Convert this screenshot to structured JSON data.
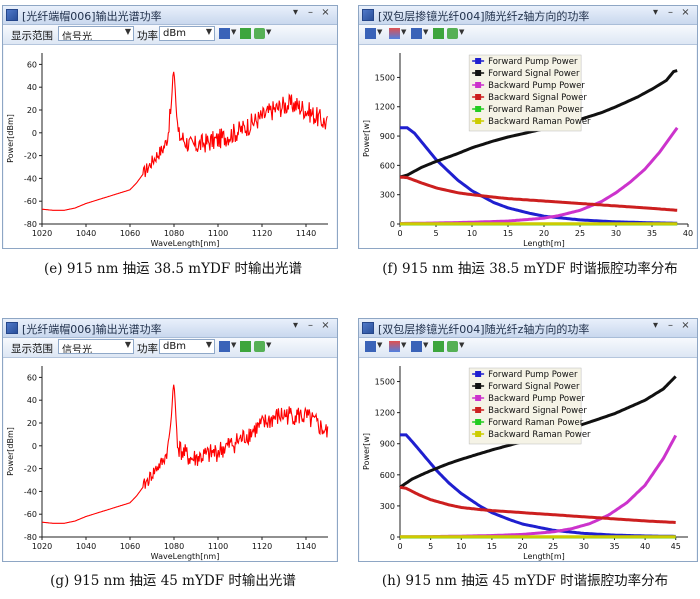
{
  "panels": {
    "e": {
      "title": "[光纤端帽006]输出光谱功率",
      "toolbar": {
        "range_label": "显示范围",
        "range_value": "信号光",
        "power_label": "功率",
        "power_value": "dBm"
      },
      "caption": "(e) 915 nm 抽运 38.5 mYDF 时输出光谱"
    },
    "f": {
      "title": "[双包层掺镱光纤004]随光纤z轴方向的功率",
      "caption": "(f) 915 nm 抽运 38.5 mYDF 时谐振腔功率分布"
    },
    "g": {
      "title": "[光纤端帽006]输出光谱功率",
      "toolbar": {
        "range_label": "显示范围",
        "range_value": "信号光",
        "power_label": "功率",
        "power_value": "dBm"
      },
      "caption": "(g) 915 nm 抽运 45 mYDF 时输出光谱"
    },
    "h": {
      "title": "[双包层掺镱光纤004]随光纤z轴方向的功率",
      "caption": "(h) 915 nm 抽运 45 mYDF 时谐振腔功率分布"
    }
  },
  "window_buttons": {
    "pin": "▾",
    "minimize": "–",
    "close": "×"
  },
  "chart_data": [
    {
      "id": "e",
      "type": "line",
      "xlabel": "WaveLength[nm]",
      "ylabel": "Power[dBm]",
      "xlim": [
        1020,
        1150
      ],
      "ylim": [
        -80,
        70
      ],
      "xticks": [
        1020,
        1040,
        1060,
        1080,
        1100,
        1120,
        1140
      ],
      "yticks": [
        -80,
        -60,
        -40,
        -20,
        0,
        20,
        40,
        60
      ],
      "series": [
        {
          "color": "#ff0000",
          "x": [
            1020,
            1025,
            1030,
            1035,
            1040,
            1045,
            1050,
            1055,
            1060,
            1063,
            1066,
            1069,
            1072,
            1075,
            1077,
            1078,
            1079,
            1079.5,
            1080,
            1080.5,
            1081,
            1082,
            1084,
            1088,
            1092,
            1096,
            1100,
            1105,
            1110,
            1115,
            1120,
            1125,
            1130,
            1133,
            1136,
            1140,
            1144,
            1148,
            1150
          ],
          "y": [
            -67,
            -68,
            -68,
            -66,
            -62,
            -59,
            -56,
            -53,
            -50,
            -44,
            -36,
            -28,
            -20,
            -14,
            -5,
            10,
            30,
            50,
            55,
            40,
            20,
            -2,
            -5,
            -12,
            -10,
            -8,
            -6,
            -2,
            2,
            8,
            14,
            20,
            24,
            25,
            24,
            20,
            15,
            10,
            7
          ]
        }
      ]
    },
    {
      "id": "f",
      "type": "line",
      "xlabel": "Length[m]",
      "ylabel": "Power[w]",
      "xlim": [
        0,
        40
      ],
      "ylim": [
        0,
        1750
      ],
      "xticks": [
        0,
        5,
        10,
        15,
        20,
        25,
        30,
        35,
        40
      ],
      "yticks": [
        0,
        300,
        600,
        900,
        1200,
        1500
      ],
      "legend_position": "top-center",
      "series": [
        {
          "name": "Forward Pump Power",
          "color": "#1f1fcf",
          "x": [
            0,
            1,
            2,
            3,
            5,
            8,
            10,
            13,
            15,
            18,
            20,
            25,
            30,
            35,
            38.5
          ],
          "y": [
            985,
            985,
            930,
            840,
            660,
            450,
            340,
            220,
            165,
            110,
            80,
            42,
            22,
            12,
            8
          ]
        },
        {
          "name": "Forward Signal Power",
          "color": "#111111",
          "x": [
            0,
            1,
            3,
            5,
            8,
            10,
            13,
            15,
            18,
            20,
            23,
            25,
            28,
            30,
            33,
            35,
            37,
            38,
            38.5
          ],
          "y": [
            480,
            500,
            580,
            640,
            720,
            780,
            850,
            890,
            940,
            975,
            1030,
            1070,
            1140,
            1200,
            1300,
            1380,
            1470,
            1560,
            1570
          ]
        },
        {
          "name": "Backward Pump Power",
          "color": "#cc33cc",
          "x": [
            0,
            5,
            10,
            15,
            20,
            22,
            25,
            28,
            30,
            32,
            34,
            36,
            38.5
          ],
          "y": [
            5,
            10,
            18,
            30,
            60,
            85,
            140,
            230,
            320,
            430,
            560,
            730,
            985
          ]
        },
        {
          "name": "Backward Signal Power",
          "color": "#cc1f1f",
          "x": [
            0,
            1,
            3,
            5,
            8,
            10,
            13,
            15,
            18,
            20,
            25,
            30,
            35,
            38.5
          ],
          "y": [
            480,
            475,
            420,
            370,
            320,
            300,
            275,
            260,
            245,
            235,
            210,
            185,
            160,
            140
          ]
        },
        {
          "name": "Forward Raman Power",
          "color": "#22cc22",
          "x": [
            0,
            38.5
          ],
          "y": [
            0,
            0
          ]
        },
        {
          "name": "Backward Raman Power",
          "color": "#cccc00",
          "x": [
            0,
            38.5
          ],
          "y": [
            2,
            2
          ]
        }
      ]
    },
    {
      "id": "g",
      "type": "line",
      "xlabel": "WaveLength[nm]",
      "ylabel": "Power[dBm]",
      "xlim": [
        1020,
        1150
      ],
      "ylim": [
        -80,
        70
      ],
      "xticks": [
        1020,
        1040,
        1060,
        1080,
        1100,
        1120,
        1140
      ],
      "yticks": [
        -80,
        -60,
        -40,
        -20,
        0,
        20,
        40,
        60
      ],
      "series": [
        {
          "color": "#ff0000",
          "x": [
            1020,
            1025,
            1030,
            1035,
            1040,
            1045,
            1050,
            1055,
            1060,
            1063,
            1066,
            1069,
            1072,
            1075,
            1077,
            1078,
            1079,
            1079.5,
            1080,
            1080.5,
            1081,
            1082,
            1084,
            1088,
            1092,
            1096,
            1100,
            1105,
            1110,
            1115,
            1120,
            1125,
            1130,
            1135,
            1140,
            1144,
            1148,
            1150
          ],
          "y": [
            -67,
            -68,
            -68,
            -66,
            -62,
            -59,
            -56,
            -53,
            -50,
            -44,
            -36,
            -28,
            -20,
            -14,
            -5,
            10,
            30,
            48,
            56,
            40,
            20,
            -2,
            -6,
            -12,
            -10,
            -8,
            -5,
            0,
            5,
            12,
            18,
            24,
            27,
            27,
            25,
            20,
            14,
            10
          ]
        }
      ]
    },
    {
      "id": "h",
      "type": "line",
      "xlabel": "Length[m]",
      "ylabel": "Power[w]",
      "xlim": [
        0,
        47
      ],
      "ylim": [
        0,
        1650
      ],
      "xticks": [
        0,
        5,
        10,
        15,
        20,
        25,
        30,
        35,
        40,
        45
      ],
      "yticks": [
        0,
        300,
        600,
        900,
        1200,
        1500
      ],
      "legend_position": "top-center",
      "series": [
        {
          "name": "Forward Pump Power",
          "color": "#1f1fcf",
          "x": [
            0,
            1,
            2,
            4,
            6,
            8,
            10,
            13,
            15,
            18,
            20,
            25,
            30,
            35,
            40,
            45
          ],
          "y": [
            985,
            985,
            920,
            780,
            640,
            520,
            420,
            300,
            235,
            165,
            125,
            65,
            35,
            18,
            10,
            6
          ]
        },
        {
          "name": "Forward Signal Power",
          "color": "#111111",
          "x": [
            0,
            2,
            5,
            8,
            10,
            15,
            20,
            25,
            30,
            35,
            40,
            43,
            45
          ],
          "y": [
            480,
            560,
            640,
            710,
            750,
            840,
            920,
            1000,
            1090,
            1190,
            1320,
            1430,
            1550
          ]
        },
        {
          "name": "Backward Pump Power",
          "color": "#cc33cc",
          "x": [
            0,
            5,
            10,
            15,
            20,
            25,
            28,
            31,
            34,
            37,
            40,
            43,
            45
          ],
          "y": [
            2,
            4,
            8,
            14,
            25,
            50,
            80,
            130,
            210,
            330,
            500,
            760,
            980
          ]
        },
        {
          "name": "Backward Signal Power",
          "color": "#cc1f1f",
          "x": [
            0,
            1,
            3,
            5,
            8,
            10,
            13,
            15,
            20,
            25,
            30,
            35,
            40,
            45
          ],
          "y": [
            480,
            470,
            410,
            360,
            310,
            285,
            265,
            255,
            235,
            215,
            195,
            175,
            155,
            140
          ]
        },
        {
          "name": "Forward Raman Power",
          "color": "#22cc22",
          "x": [
            0,
            45
          ],
          "y": [
            0,
            0
          ]
        },
        {
          "name": "Backward Raman Power",
          "color": "#cccc00",
          "x": [
            0,
            45
          ],
          "y": [
            2,
            2
          ]
        }
      ]
    }
  ]
}
